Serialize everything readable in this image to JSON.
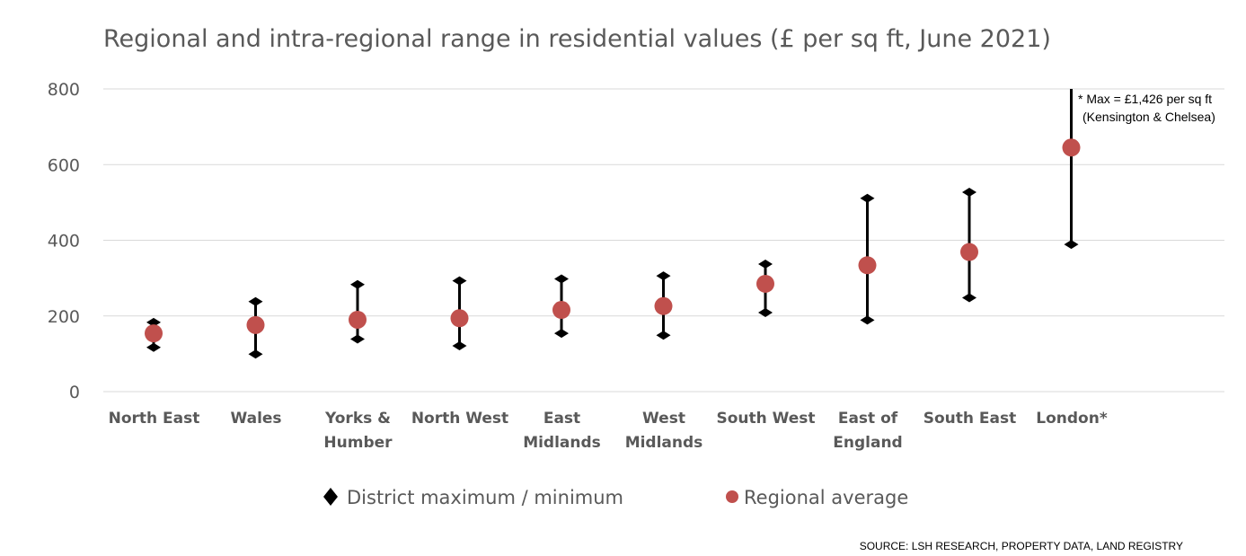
{
  "chart_data": {
    "type": "scatter",
    "title": "Regional and intra-regional range in residential values (£ per sq ft, June 2021)",
    "xlabel": "",
    "ylabel": "",
    "ylim": [
      0,
      800
    ],
    "yticks": [
      0,
      200,
      400,
      600,
      800
    ],
    "grid": true,
    "legend_position": "bottom",
    "categories": [
      "North East",
      "Wales",
      "Yorks & Humber",
      "North West",
      "East Midlands",
      "West Midlands",
      "South West",
      "East of England",
      "South East",
      "London*"
    ],
    "category_lines": [
      [
        "North East"
      ],
      [
        "Wales"
      ],
      [
        "Yorks &",
        "Humber"
      ],
      [
        "North West"
      ],
      [
        "East",
        "Midlands"
      ],
      [
        "West",
        "Midlands"
      ],
      [
        "South West"
      ],
      [
        "East of",
        "England"
      ],
      [
        "South East"
      ],
      [
        "London*"
      ]
    ],
    "series": [
      {
        "name": "District maximum / minimum",
        "kind": "range",
        "max": [
          183,
          238,
          283,
          293,
          298,
          306,
          337,
          511,
          527,
          1426
        ],
        "min": [
          117,
          99,
          139,
          121,
          154,
          149,
          209,
          189,
          248,
          389
        ]
      },
      {
        "name": "Regional average",
        "kind": "point",
        "values": [
          154,
          176,
          190,
          194,
          216,
          226,
          285,
          334,
          369,
          645
        ]
      }
    ],
    "annotations": [
      "* Max = £1,426 per sq ft",
      "(Kensington & Chelsea)"
    ],
    "source": "SOURCE: LSH RESEARCH, PROPERTY DATA, LAND REGISTRY",
    "colors": {
      "range": "#000000",
      "average": "#c0504d",
      "grid": "#d9d9d9",
      "text": "#595959"
    }
  }
}
